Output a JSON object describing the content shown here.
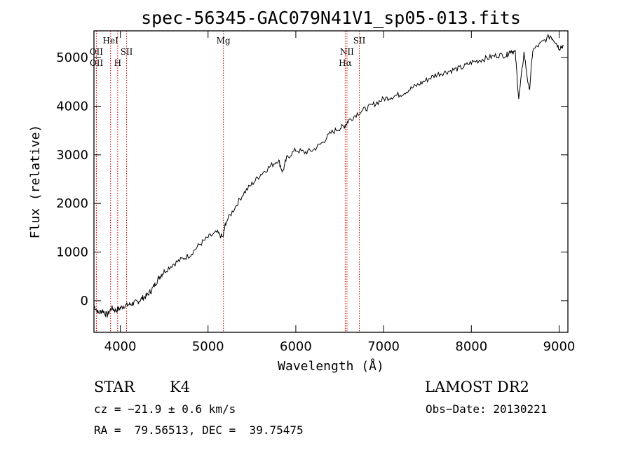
{
  "chart_data": {
    "type": "line",
    "title": "spec-56345-GAC079N41V1_sp05-013.fits",
    "xlabel": "Wavelength (Å)",
    "ylabel": "Flux (relative)",
    "xlim": [
      3700,
      9100
    ],
    "ylim": [
      -650,
      5550
    ],
    "xticks": [
      4000,
      5000,
      6000,
      7000,
      8000,
      9000
    ],
    "yticks": [
      0,
      1000,
      2000,
      3000,
      4000,
      5000
    ],
    "series": [
      {
        "name": "spectrum",
        "x": [
          3700,
          3750,
          3800,
          3850,
          3900,
          3950,
          4000,
          4050,
          4100,
          4150,
          4200,
          4250,
          4300,
          4350,
          4400,
          4450,
          4500,
          4600,
          4700,
          4800,
          4900,
          5000,
          5100,
          5170,
          5200,
          5300,
          5400,
          5500,
          5600,
          5700,
          5800,
          5850,
          5900,
          6000,
          6100,
          6200,
          6300,
          6400,
          6500,
          6560,
          6600,
          6700,
          6800,
          6900,
          7000,
          7100,
          7200,
          7300,
          7400,
          7500,
          7600,
          7700,
          7800,
          7900,
          8000,
          8100,
          8200,
          8300,
          8400,
          8450,
          8500,
          8540,
          8600,
          8660,
          8700,
          8800,
          8900,
          8950,
          9000,
          9050
        ],
        "y": [
          -100,
          -250,
          -200,
          -300,
          -150,
          -200,
          -150,
          -100,
          -80,
          -50,
          -20,
          50,
          100,
          200,
          350,
          500,
          600,
          750,
          850,
          950,
          1150,
          1300,
          1400,
          1300,
          1600,
          1900,
          2200,
          2400,
          2600,
          2750,
          2900,
          2650,
          2950,
          3100,
          3050,
          3100,
          3250,
          3450,
          3550,
          3600,
          3700,
          3850,
          3950,
          4050,
          4150,
          4200,
          4250,
          4350,
          4450,
          4550,
          4650,
          4700,
          4750,
          4800,
          4900,
          4950,
          5000,
          5050,
          5050,
          5150,
          5100,
          4150,
          5100,
          4300,
          5150,
          5300,
          5450,
          5350,
          5200,
          5250
        ]
      }
    ],
    "emission_lines": [
      {
        "label": "OII",
        "wavelength": 3727
      },
      {
        "label": "OII",
        "wavelength": 3729
      },
      {
        "label": "HeI",
        "wavelength": 3889
      },
      {
        "label": "H",
        "wavelength": 3970
      },
      {
        "label": "SII",
        "wavelength": 4072
      },
      {
        "label": "Mg",
        "wavelength": 5175
      },
      {
        "label": "NII",
        "wavelength": 6583
      },
      {
        "label": "Hα",
        "wavelength": 6563
      },
      {
        "label": "SII",
        "wavelength": 6724
      }
    ]
  },
  "info": {
    "object_class": "STAR",
    "subclass": "K4",
    "survey": "LAMOST DR2",
    "cz": "cz = −21.9 ± 0.6 km/s",
    "obs_date": "Obs−Date: 20130221",
    "coords": "RA =  79.56513, DEC =  39.75475"
  },
  "colors": {
    "axis": "#000000",
    "line_marker": "#cc0000",
    "spectrum": "#000000"
  }
}
